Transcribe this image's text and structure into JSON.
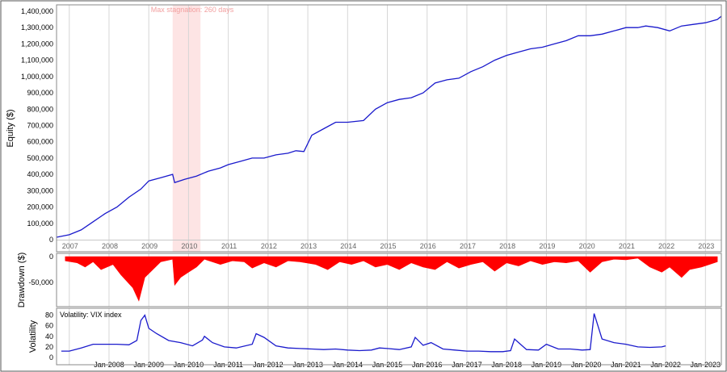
{
  "chart_data": [
    {
      "type": "line",
      "ylabel": "Equity ($)",
      "ylim": [
        0,
        1400000
      ],
      "y_ticks": [
        "0",
        "100,000",
        "200,000",
        "300,000",
        "400,000",
        "500,000",
        "600,000",
        "700,000",
        "800,000",
        "900,000",
        "1,000,000",
        "1,100,000",
        "1,200,000",
        "1,300,000",
        "1,400,000"
      ],
      "x_year_labels": [
        "2007",
        "2008",
        "2009",
        "2010",
        "2011",
        "2012",
        "2013",
        "2014",
        "2015",
        "2016",
        "2017",
        "2018",
        "2019",
        "2020",
        "2021",
        "2022",
        "2023"
      ],
      "annotation": "Max stagnation: 260 days",
      "stagnation_period": [
        2009.6,
        2010.3
      ],
      "series": [
        {
          "color": "#1a1acc",
          "x": [
            2006.68,
            2007.0,
            2007.3,
            2007.6,
            2007.9,
            2008.2,
            2008.5,
            2008.8,
            2009.0,
            2009.3,
            2009.6,
            2009.65,
            2009.9,
            2010.2,
            2010.5,
            2010.8,
            2011.0,
            2011.3,
            2011.6,
            2011.9,
            2012.2,
            2012.5,
            2012.7,
            2012.9,
            2013.1,
            2013.4,
            2013.7,
            2014.0,
            2014.4,
            2014.7,
            2015.0,
            2015.3,
            2015.6,
            2015.9,
            2016.2,
            2016.5,
            2016.8,
            2017.1,
            2017.4,
            2017.7,
            2018.0,
            2018.3,
            2018.6,
            2018.9,
            2019.2,
            2019.5,
            2019.8,
            2020.1,
            2020.4,
            2020.7,
            2021.0,
            2021.3,
            2021.5,
            2021.8,
            2022.1,
            2022.4,
            2022.7,
            2023.0,
            2023.3,
            2023.4
          ],
          "y": [
            15000,
            30000,
            60000,
            110000,
            160000,
            200000,
            260000,
            310000,
            360000,
            380000,
            400000,
            350000,
            370000,
            390000,
            420000,
            440000,
            460000,
            480000,
            500000,
            500000,
            520000,
            530000,
            545000,
            540000,
            640000,
            680000,
            720000,
            720000,
            730000,
            800000,
            840000,
            860000,
            870000,
            900000,
            960000,
            980000,
            990000,
            1030000,
            1060000,
            1100000,
            1130000,
            1150000,
            1170000,
            1180000,
            1200000,
            1220000,
            1250000,
            1250000,
            1260000,
            1280000,
            1300000,
            1300000,
            1310000,
            1300000,
            1280000,
            1310000,
            1320000,
            1330000,
            1350000,
            1370000
          ]
        }
      ]
    },
    {
      "type": "area",
      "ylabel": "Drawdown ($)",
      "ylim": [
        -90000,
        0
      ],
      "y_ticks": [
        "0",
        "-50,000"
      ],
      "series": [
        {
          "color": "#ff0000",
          "x": [
            2006.9,
            2007.2,
            2007.4,
            2007.6,
            2007.8,
            2008.1,
            2008.3,
            2008.6,
            2008.75,
            2008.9,
            2009.1,
            2009.3,
            2009.6,
            2009.65,
            2009.8,
            2010.0,
            2010.2,
            2010.4,
            2010.8,
            2011.1,
            2011.4,
            2011.6,
            2011.9,
            2012.2,
            2012.5,
            2012.8,
            2013.2,
            2013.5,
            2013.8,
            2014.1,
            2014.4,
            2014.7,
            2015.0,
            2015.3,
            2015.6,
            2015.9,
            2016.2,
            2016.5,
            2016.8,
            2017.1,
            2017.4,
            2017.7,
            2018.0,
            2018.3,
            2018.6,
            2018.9,
            2019.2,
            2019.5,
            2019.8,
            2020.1,
            2020.4,
            2020.7,
            2021.0,
            2021.3,
            2021.6,
            2021.9,
            2022.1,
            2022.4,
            2022.6,
            2022.9,
            2023.1,
            2023.3
          ],
          "y": [
            -8000,
            -12000,
            -20000,
            -10000,
            -25000,
            -15000,
            -35000,
            -60000,
            -85000,
            -40000,
            -25000,
            -10000,
            -5000,
            -55000,
            -40000,
            -30000,
            -20000,
            -5000,
            -15000,
            -8000,
            -10000,
            -22000,
            -12000,
            -20000,
            -8000,
            -10000,
            -15000,
            -25000,
            -10000,
            -15000,
            -8000,
            -20000,
            -15000,
            -25000,
            -12000,
            -20000,
            -25000,
            -10000,
            -22000,
            -15000,
            -10000,
            -28000,
            -12000,
            -18000,
            -8000,
            -15000,
            -10000,
            -12000,
            -8000,
            -30000,
            -10000,
            -5000,
            -6000,
            -3000,
            -20000,
            -30000,
            -20000,
            -40000,
            -25000,
            -20000,
            -15000,
            -10000
          ]
        }
      ]
    },
    {
      "type": "line",
      "ylabel": "Volatility",
      "panel_label": "Volatility: VIX index",
      "ylim": [
        0,
        90
      ],
      "y_ticks": [
        "0",
        "20",
        "40",
        "60",
        "80"
      ],
      "x_date_labels": [
        "Jan-2008",
        "Jan-2009",
        "Jan-2010",
        "Jan-2011",
        "Jan-2012",
        "Jan-2013",
        "Jan-2014",
        "Jan-2015",
        "Jan-2016",
        "Jan-2017",
        "Jan-2018",
        "Jan-2019",
        "Jan-2020",
        "Jan-2021",
        "Jan-2022",
        "Jan-2023"
      ],
      "series": [
        {
          "color": "#1a1acc",
          "x": [
            2006.8,
            2007.0,
            2007.3,
            2007.6,
            2007.9,
            2008.2,
            2008.5,
            2008.7,
            2008.8,
            2008.9,
            2009.0,
            2009.2,
            2009.5,
            2009.8,
            2010.1,
            2010.35,
            2010.4,
            2010.6,
            2010.9,
            2011.2,
            2011.6,
            2011.7,
            2011.9,
            2012.2,
            2012.5,
            2012.8,
            2013.1,
            2013.4,
            2013.7,
            2014.0,
            2014.3,
            2014.6,
            2014.8,
            2015.0,
            2015.3,
            2015.6,
            2015.7,
            2015.9,
            2016.1,
            2016.4,
            2016.7,
            2017.0,
            2017.3,
            2017.6,
            2017.9,
            2018.1,
            2018.2,
            2018.5,
            2018.8,
            2019.0,
            2019.3,
            2019.6,
            2019.9,
            2020.1,
            2020.2,
            2020.4,
            2020.7,
            2021.0,
            2021.3,
            2021.6,
            2021.9,
            2022.0
          ],
          "y": [
            12,
            12,
            18,
            25,
            25,
            25,
            24,
            32,
            70,
            80,
            55,
            45,
            32,
            28,
            22,
            33,
            40,
            28,
            20,
            18,
            25,
            45,
            38,
            22,
            18,
            17,
            16,
            15,
            16,
            14,
            13,
            14,
            18,
            17,
            15,
            20,
            38,
            23,
            28,
            16,
            14,
            12,
            12,
            11,
            11,
            13,
            35,
            15,
            14,
            25,
            16,
            16,
            14,
            15,
            83,
            35,
            28,
            25,
            20,
            19,
            20,
            22
          ]
        }
      ]
    }
  ]
}
